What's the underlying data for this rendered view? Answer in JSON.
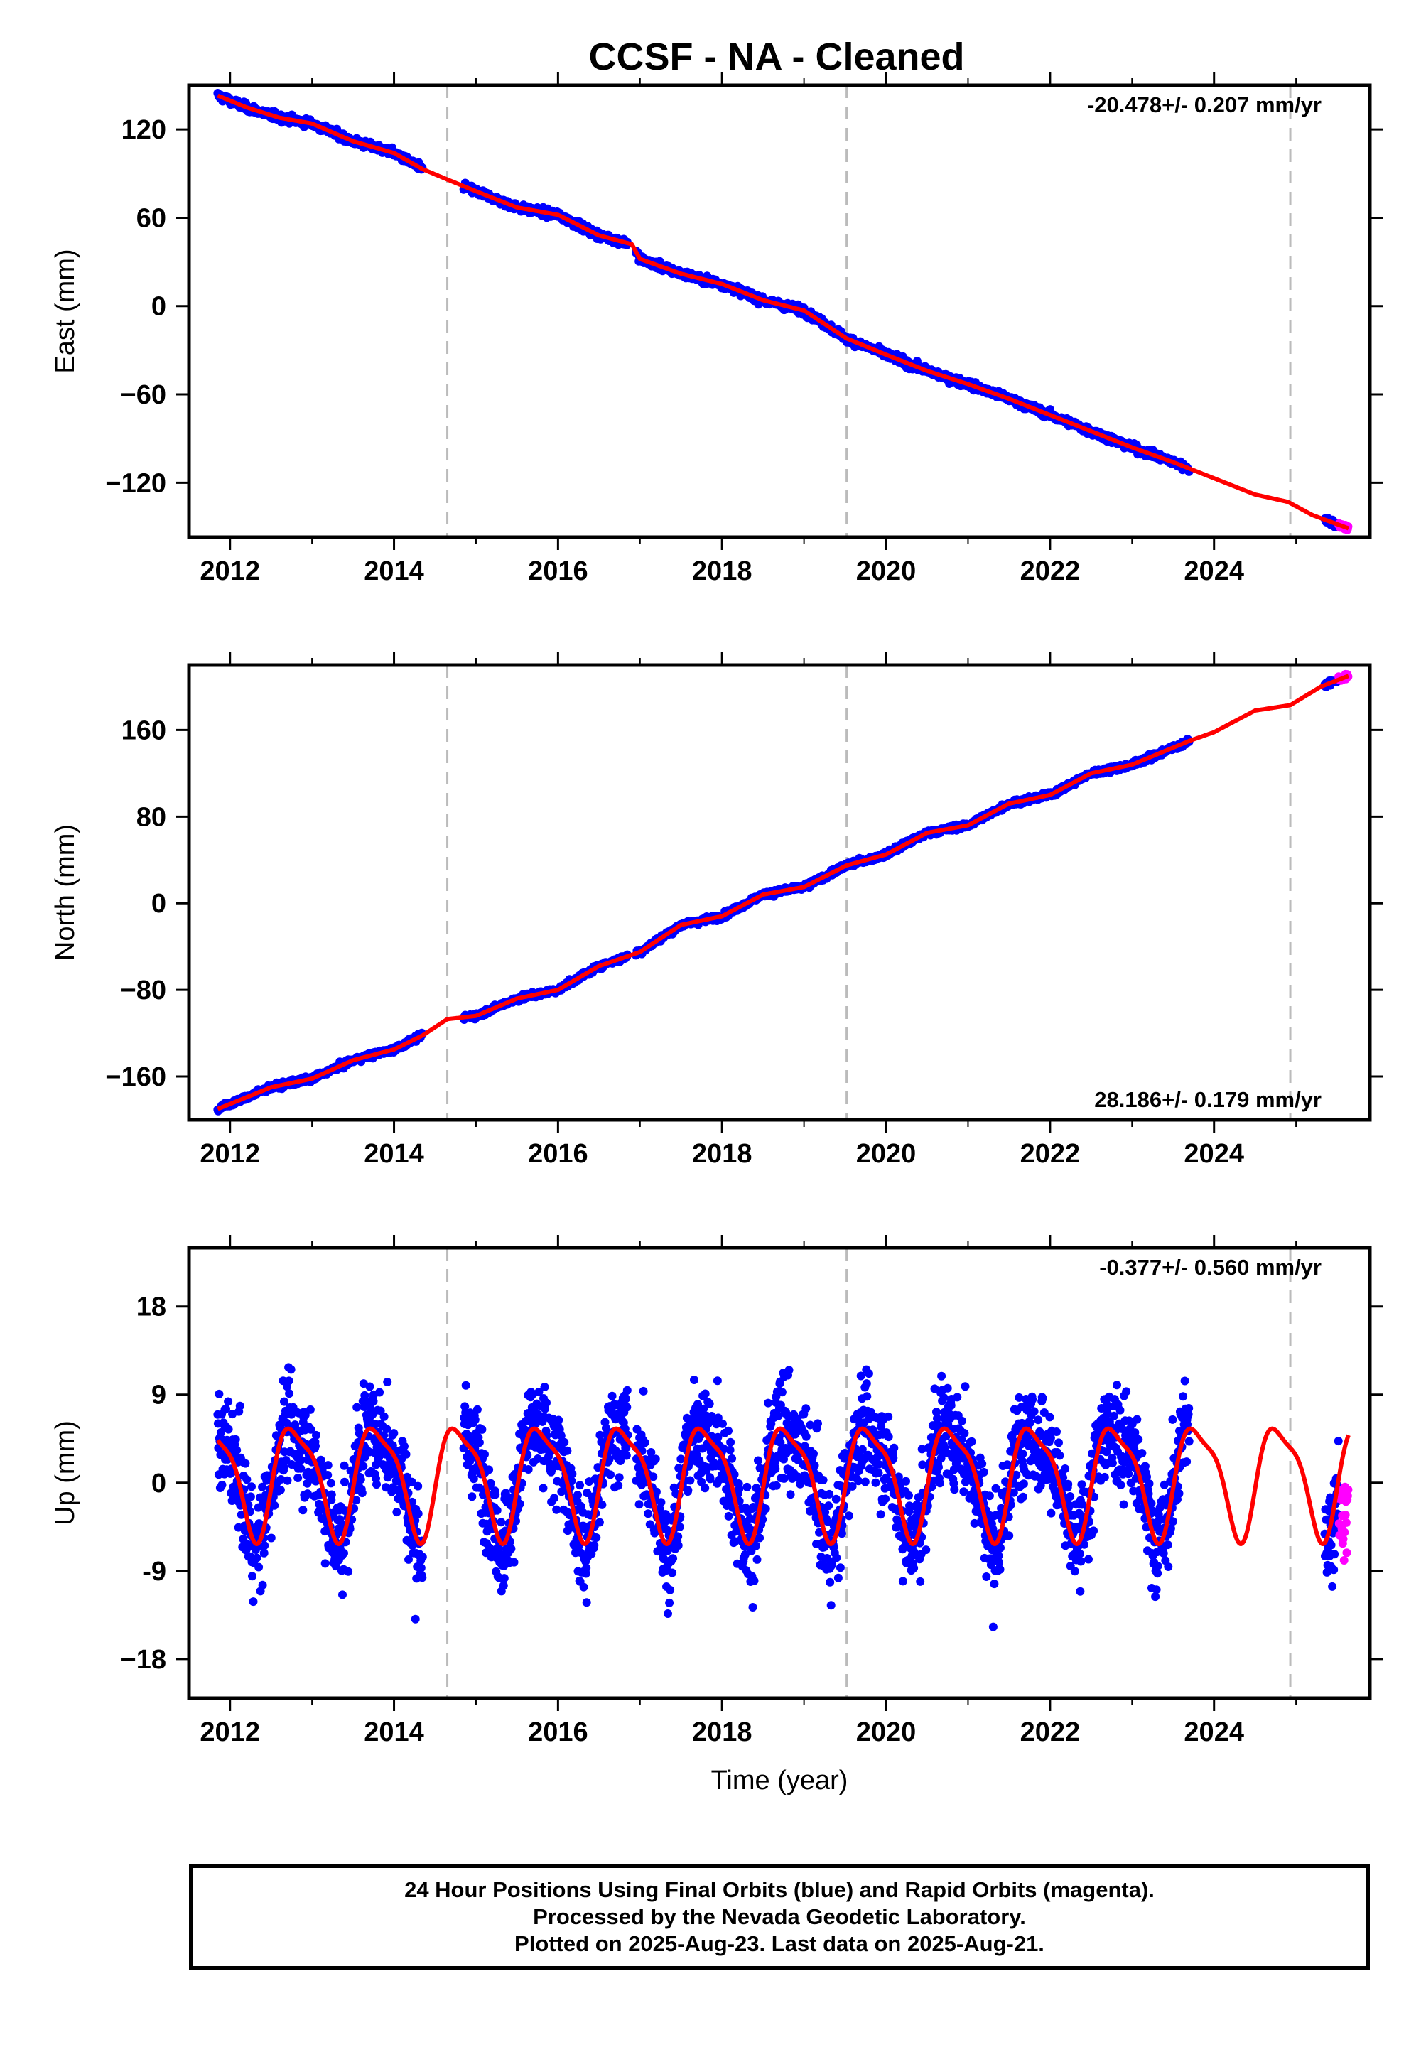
{
  "title": "CCSF  - NA - Cleaned",
  "x_axis_label": "Time (year)",
  "colors": {
    "final_orbits": "#0000ff",
    "rapid_orbits": "#ff00ff",
    "model": "#ff0000",
    "equipment_change": "#bbbbbb",
    "frame": "#000000"
  },
  "footer": {
    "line1": "24 Hour Positions Using Final Orbits (blue) and Rapid Orbits (magenta).",
    "line2": "Processed by the Nevada Geodetic Laboratory.",
    "line3": "Plotted on 2025-Aug-23. Last data on 2025-Aug-21."
  },
  "chart_data": [
    {
      "type": "scatter",
      "component": "East",
      "ylabel": "East (mm)",
      "rate_label": "-20.478+/- 0.207 mm/yr",
      "rate_position": "top-right",
      "xlim": [
        2011.5,
        2025.9
      ],
      "ylim": [
        -157,
        150
      ],
      "x_ticks": [
        "2012",
        "2014",
        "2016",
        "2018",
        "2020",
        "2022",
        "2024"
      ],
      "y_ticks": [
        "120",
        "60",
        "0",
        "−60",
        "−120"
      ],
      "x_tick_values": [
        2012,
        2014,
        2016,
        2018,
        2020,
        2022,
        2024
      ],
      "y_tick_values": [
        120,
        60,
        0,
        -60,
        -120
      ],
      "equipment_changes": [
        2014.65,
        2019.52,
        2024.93
      ],
      "final_orbit_segments": [
        [
          2011.85,
          2014.35
        ],
        [
          2014.85,
          2016.85
        ],
        [
          2016.95,
          2023.7
        ],
        [
          2025.35,
          2025.52
        ]
      ],
      "rapid_orbit_range": [
        2025.52,
        2025.64
      ],
      "rate_mm_per_yr": -20.478,
      "model_trend": [
        [
          2011.85,
          143
        ],
        [
          2012.2,
          135
        ],
        [
          2012.6,
          128
        ],
        [
          2013.0,
          124
        ],
        [
          2013.5,
          112
        ],
        [
          2014.0,
          104
        ],
        [
          2014.35,
          93
        ],
        [
          2014.65,
          86
        ],
        [
          2015.0,
          78
        ],
        [
          2015.5,
          67
        ],
        [
          2016.0,
          62
        ],
        [
          2016.5,
          48
        ],
        [
          2016.9,
          42
        ],
        [
          2017.0,
          32
        ],
        [
          2017.5,
          22
        ],
        [
          2018.0,
          15
        ],
        [
          2018.5,
          4
        ],
        [
          2019.0,
          -3
        ],
        [
          2019.52,
          -22
        ],
        [
          2020.0,
          -33
        ],
        [
          2020.5,
          -44
        ],
        [
          2021.0,
          -53
        ],
        [
          2021.5,
          -63
        ],
        [
          2022.0,
          -74
        ],
        [
          2022.5,
          -85
        ],
        [
          2023.0,
          -96
        ],
        [
          2023.5,
          -106
        ],
        [
          2024.0,
          -117
        ],
        [
          2024.5,
          -128
        ],
        [
          2024.9,
          -133
        ],
        [
          2025.2,
          -142
        ],
        [
          2025.64,
          -151
        ]
      ]
    },
    {
      "type": "scatter",
      "component": "North",
      "ylabel": "North (mm)",
      "rate_label": "28.186+/- 0.179 mm/yr",
      "rate_position": "bottom-right",
      "xlim": [
        2011.5,
        2025.9
      ],
      "ylim": [
        -200,
        220
      ],
      "x_ticks": [
        "2012",
        "2014",
        "2016",
        "2018",
        "2020",
        "2022",
        "2024"
      ],
      "y_ticks": [
        "160",
        "80",
        "0",
        "−80",
        "−160"
      ],
      "x_tick_values": [
        2012,
        2014,
        2016,
        2018,
        2020,
        2022,
        2024
      ],
      "y_tick_values": [
        160,
        80,
        0,
        -80,
        -160
      ],
      "equipment_changes": [
        2014.65,
        2019.52,
        2024.93
      ],
      "final_orbit_segments": [
        [
          2011.85,
          2014.35
        ],
        [
          2014.85,
          2016.85
        ],
        [
          2016.95,
          2023.7
        ],
        [
          2025.35,
          2025.52
        ]
      ],
      "rapid_orbit_range": [
        2025.52,
        2025.64
      ],
      "rate_mm_per_yr": 28.186,
      "model_trend": [
        [
          2011.85,
          -190
        ],
        [
          2012.5,
          -170
        ],
        [
          2013.0,
          -162
        ],
        [
          2013.5,
          -145
        ],
        [
          2014.0,
          -135
        ],
        [
          2014.35,
          -122
        ],
        [
          2014.65,
          -107
        ],
        [
          2015.0,
          -104
        ],
        [
          2015.5,
          -88
        ],
        [
          2016.0,
          -80
        ],
        [
          2016.5,
          -58
        ],
        [
          2017.0,
          -45
        ],
        [
          2017.5,
          -20
        ],
        [
          2018.0,
          -12
        ],
        [
          2018.5,
          8
        ],
        [
          2019.0,
          15
        ],
        [
          2019.52,
          35
        ],
        [
          2020.0,
          45
        ],
        [
          2020.5,
          65
        ],
        [
          2021.0,
          72
        ],
        [
          2021.5,
          92
        ],
        [
          2022.0,
          100
        ],
        [
          2022.5,
          120
        ],
        [
          2023.0,
          128
        ],
        [
          2023.7,
          150
        ],
        [
          2024.0,
          158
        ],
        [
          2024.5,
          178
        ],
        [
          2024.93,
          183
        ],
        [
          2025.3,
          200
        ],
        [
          2025.64,
          210
        ]
      ]
    },
    {
      "type": "scatter",
      "component": "Up",
      "ylabel": "Up (mm)",
      "rate_label": "-0.377+/- 0.560 mm/yr",
      "rate_position": "top-right",
      "xlim": [
        2011.5,
        2025.9
      ],
      "ylim": [
        -22,
        24
      ],
      "x_ticks": [
        "2012",
        "2014",
        "2016",
        "2018",
        "2020",
        "2022",
        "2024"
      ],
      "y_ticks": [
        "18",
        "9",
        "0",
        "-9",
        "−18"
      ],
      "x_tick_values": [
        2012,
        2014,
        2016,
        2018,
        2020,
        2022,
        2024
      ],
      "y_tick_values": [
        18,
        9,
        0,
        -9,
        -18
      ],
      "equipment_changes": [
        2014.65,
        2019.52,
        2024.93
      ],
      "final_orbit_segments": [
        [
          2011.85,
          2014.35
        ],
        [
          2014.85,
          2016.85
        ],
        [
          2016.95,
          2023.7
        ],
        [
          2025.35,
          2025.52
        ]
      ],
      "rapid_orbit_range": [
        2025.52,
        2025.64
      ],
      "rate_mm_per_yr": -0.377,
      "model_seasonal": {
        "annual_amplitude_mm": 5.5,
        "peak_in_year_fraction": 0.8
      }
    }
  ]
}
